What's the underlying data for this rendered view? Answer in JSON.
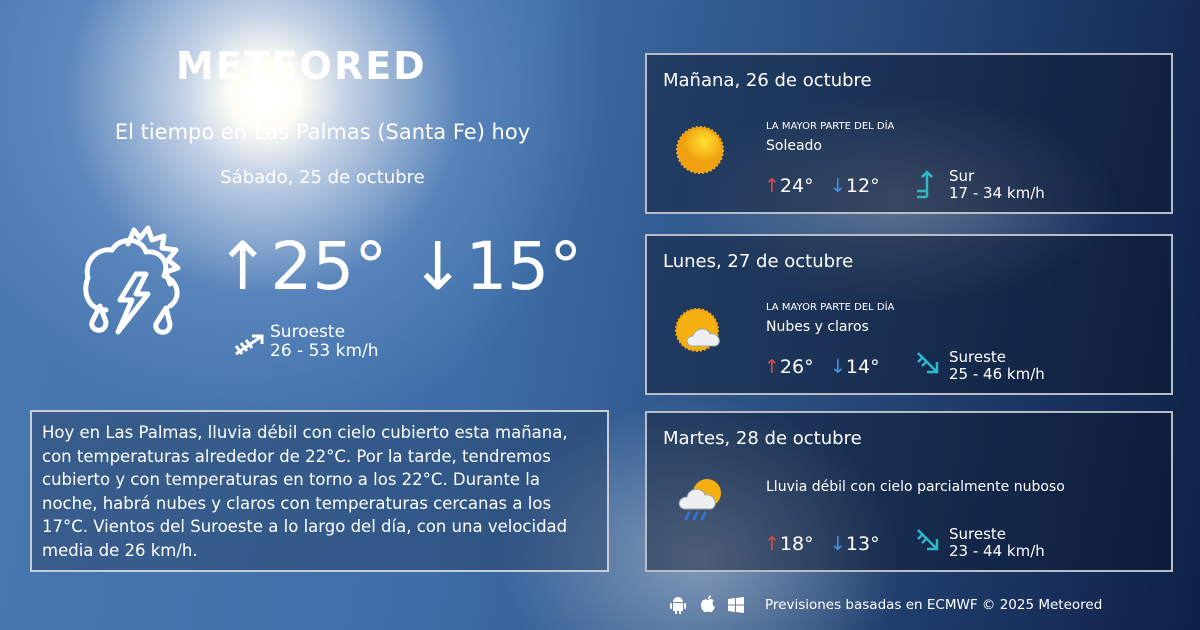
{
  "brand": "METEORED",
  "header": {
    "title": "El tiempo en Las Palmas (Santa Fe) hoy",
    "date": "Sábado, 25 de octubre"
  },
  "today": {
    "icon": "thunderstorm-rain-sun-icon",
    "max": "25°",
    "min": "15°",
    "wind_dir": "Suroeste",
    "wind_speed": "26 - 53 km/h"
  },
  "description": "Hoy en Las Palmas, lluvia débil con cielo cubierto esta mañana, con temperaturas alrededor de 22°C. Por la tarde, tendremos cubierto y con temperaturas en torno a los 22°C. Durante la noche, habrá nubes y claros  con temperaturas cercanas a los 17°C. Vientos del Suroeste a lo largo del día, con una velocidad media de 26 km/h.",
  "forecast": [
    {
      "day": "Mañana, 26 de octubre",
      "label": "LA MAYOR PARTE DEL DÍA",
      "summary": "Soleado",
      "icon": "sun-icon",
      "max": "24°",
      "min": "12°",
      "wind_dir": "Sur",
      "wind_speed": "17 - 34 km/h"
    },
    {
      "day": "Lunes, 27 de octubre",
      "label": "LA MAYOR PARTE DEL DÍA",
      "summary": "Nubes y claros",
      "icon": "sun-cloud-icon",
      "max": "26°",
      "min": "14°",
      "wind_dir": "Sureste",
      "wind_speed": "25 - 46 km/h"
    },
    {
      "day": "Martes, 28 de octubre",
      "label": "",
      "summary": "Lluvia débil con cielo parcialmente nuboso",
      "icon": "rain-sun-cloud-icon",
      "max": "18°",
      "min": "13°",
      "wind_dir": "Sureste",
      "wind_speed": "23 - 44 km/h"
    }
  ],
  "footer": {
    "text": "Previsiones basadas en ECMWF © 2025 Meteored",
    "platforms": [
      "android-icon",
      "apple-icon",
      "windows-icon"
    ]
  },
  "colors": {
    "max_arrow": "#e04848",
    "min_arrow": "#4a90e0",
    "wind_arrow": "#30b8c8",
    "sun": "#f5b010"
  }
}
